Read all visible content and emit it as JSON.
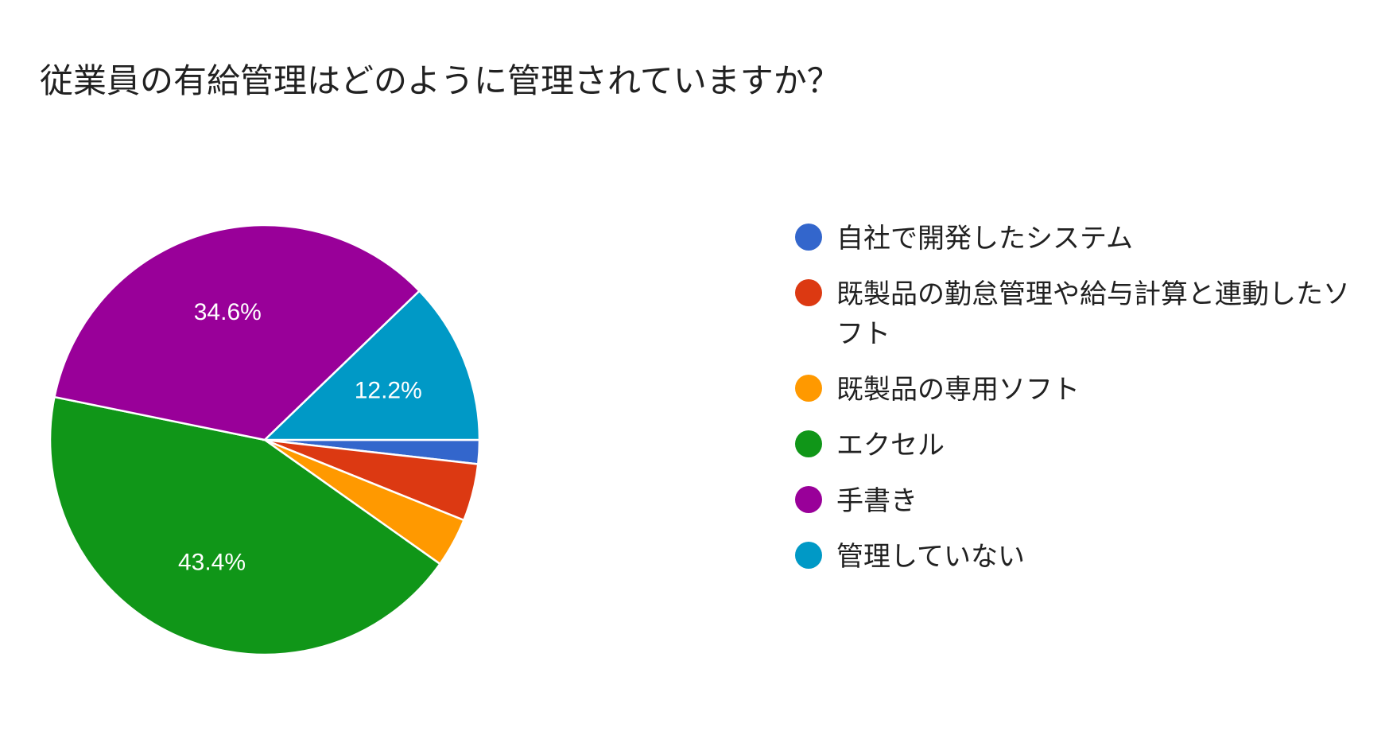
{
  "chart_data": {
    "type": "pie",
    "title": "従業員の有給管理はどのように管理されていますか？",
    "slices": [
      {
        "label": "自社で開発したシステム",
        "value": 1.8,
        "color": "#3366cc",
        "display": ""
      },
      {
        "label": "既製品の勤怠管理や給与計算と連動したソフト",
        "value": 4.3,
        "color": "#dc3912",
        "display": ""
      },
      {
        "label": "既製品の専用ソフト",
        "value": 3.7,
        "color": "#ff9900",
        "display": ""
      },
      {
        "label": "エクセル",
        "value": 43.4,
        "color": "#109618",
        "display": "43.4%"
      },
      {
        "label": "手書き",
        "value": 34.6,
        "color": "#990099",
        "display": "34.6%"
      },
      {
        "label": "管理していない",
        "value": 12.2,
        "color": "#0099c6",
        "display": "12.2%"
      }
    ],
    "legend_position": "right"
  }
}
